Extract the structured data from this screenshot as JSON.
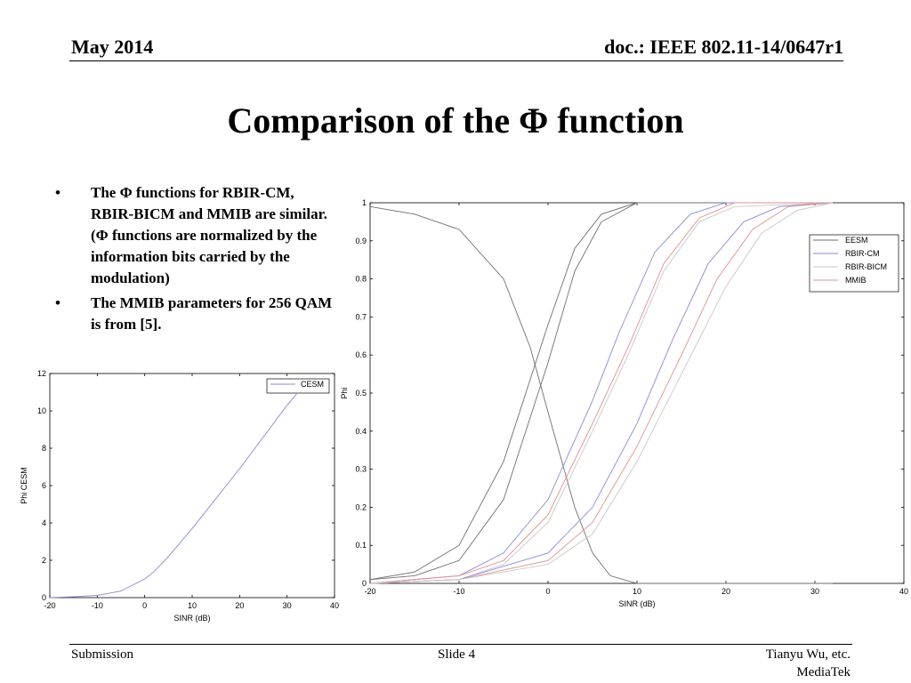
{
  "header": {
    "date": "May 2014",
    "doc_id": "doc.: IEEE 802.11-14/0647r1"
  },
  "slide": {
    "title": "Comparison of the Φ function",
    "bullets": [
      "The Φ functions for RBIR-CM, RBIR-BICM and MMIB are similar. (Φ functions are normalized by the information bits carried by the modulation)",
      "The MMIB parameters for 256 QAM is from [5]."
    ],
    "bullet_symbol": "•"
  },
  "footer": {
    "left": "Submission",
    "center": "Slide 4",
    "author": "Tianyu Wu, etc.",
    "org": "MediaTek"
  },
  "chart_data": [
    {
      "type": "line",
      "xlabel": "SINR (dB)",
      "ylabel": "Phi CESM",
      "xlim": [
        -20,
        40
      ],
      "ylim": [
        0,
        12
      ],
      "xticks": [
        -20,
        -10,
        0,
        10,
        20,
        30,
        40
      ],
      "yticks": [
        0,
        2,
        4,
        6,
        8,
        10,
        12
      ],
      "xtick_labels": [
        "-20",
        "-10",
        "0",
        "10",
        "20",
        "30",
        "40"
      ],
      "ytick_labels": [
        "0",
        "2",
        "4",
        "6",
        "8",
        "10",
        "12"
      ],
      "legend": "top-right",
      "series": [
        {
          "name": "CESM",
          "color": "#8a8ad8",
          "x": [
            -20,
            -15,
            -10,
            -5,
            0,
            2,
            5,
            10,
            15,
            20,
            25,
            30,
            32
          ],
          "y": [
            0,
            0.05,
            0.12,
            0.35,
            1.0,
            1.4,
            2.2,
            3.7,
            5.3,
            6.9,
            8.6,
            10.3,
            10.9
          ]
        }
      ]
    },
    {
      "type": "line",
      "xlabel": "SINR (dB)",
      "ylabel": "Phi",
      "xlim": [
        -20,
        40
      ],
      "ylim": [
        0,
        1
      ],
      "xticks": [
        -20,
        -10,
        0,
        10,
        20,
        30,
        40
      ],
      "yticks": [
        0,
        0.1,
        0.2,
        0.3,
        0.4,
        0.5,
        0.6,
        0.7,
        0.8,
        0.9,
        1
      ],
      "xtick_labels": [
        "-20",
        "-10",
        "0",
        "10",
        "20",
        "30",
        "40"
      ],
      "ytick_labels": [
        "0",
        "0.1",
        "0.2",
        "0.3",
        "0.4",
        "0.5",
        "0.6",
        "0.7",
        "0.8",
        "0.9",
        "1"
      ],
      "legend": "top-right",
      "legend_entries": [
        {
          "name": "EESM",
          "color": "#6e6e6e"
        },
        {
          "name": "RBIR-CM",
          "color": "#8a8ad8"
        },
        {
          "name": "RBIR-BICM",
          "color": "#c8c8c8"
        },
        {
          "name": "MMIB",
          "color": "#e29090"
        }
      ],
      "series": [
        {
          "name": "EESM",
          "color": "#6e6e6e",
          "x": [
            -20,
            -15,
            -10,
            -5,
            -2,
            0,
            3,
            5,
            7,
            10,
            32
          ],
          "y": [
            0.99,
            0.97,
            0.93,
            0.8,
            0.62,
            0.45,
            0.2,
            0.08,
            0.02,
            0.0,
            0.0
          ]
        },
        {
          "name": "EESM",
          "color": "#6e6e6e",
          "x": [
            -20,
            -15,
            -10,
            -5,
            0,
            3,
            6,
            10,
            32
          ],
          "y": [
            0.01,
            0.03,
            0.1,
            0.32,
            0.68,
            0.88,
            0.97,
            1.0,
            1.0
          ]
        },
        {
          "name": "EESM",
          "color": "#6e6e6e",
          "x": [
            -20,
            -15,
            -10,
            -5,
            0,
            3,
            6,
            10,
            32
          ],
          "y": [
            0.01,
            0.02,
            0.06,
            0.22,
            0.58,
            0.82,
            0.95,
            1.0,
            1.0
          ]
        },
        {
          "name": "RBIR-CM",
          "color": "#8a8ad8",
          "x": [
            -20,
            -10,
            -5,
            0,
            5,
            8,
            12,
            16,
            20,
            32
          ],
          "y": [
            0.0,
            0.02,
            0.08,
            0.22,
            0.48,
            0.66,
            0.87,
            0.97,
            1.0,
            1.0
          ]
        },
        {
          "name": "MMIB",
          "color": "#e29090",
          "x": [
            -20,
            -10,
            -5,
            0,
            5,
            9,
            13,
            17,
            21,
            32
          ],
          "y": [
            0.0,
            0.02,
            0.06,
            0.18,
            0.42,
            0.62,
            0.84,
            0.96,
            1.0,
            1.0
          ]
        },
        {
          "name": "RBIR-BICM",
          "color": "#c8c8c8",
          "x": [
            -20,
            -10,
            -5,
            0,
            5,
            9,
            13,
            17,
            21,
            32
          ],
          "y": [
            0.0,
            0.01,
            0.05,
            0.16,
            0.4,
            0.6,
            0.82,
            0.95,
            0.99,
            1.0
          ]
        },
        {
          "name": "RBIR-CM",
          "color": "#8a8ad8",
          "x": [
            -20,
            -10,
            0,
            5,
            10,
            14,
            18,
            22,
            26,
            32
          ],
          "y": [
            0.0,
            0.01,
            0.08,
            0.2,
            0.42,
            0.64,
            0.84,
            0.95,
            0.99,
            1.0
          ]
        },
        {
          "name": "MMIB",
          "color": "#e29090",
          "x": [
            -20,
            -10,
            0,
            5,
            10,
            15,
            19,
            23,
            27,
            32
          ],
          "y": [
            0.0,
            0.01,
            0.06,
            0.16,
            0.36,
            0.6,
            0.8,
            0.93,
            0.99,
            1.0
          ]
        },
        {
          "name": "RBIR-BICM",
          "color": "#c8c8c8",
          "x": [
            -20,
            -10,
            0,
            5,
            10,
            15,
            20,
            24,
            28,
            32
          ],
          "y": [
            0.0,
            0.01,
            0.05,
            0.13,
            0.32,
            0.55,
            0.78,
            0.92,
            0.98,
            1.0
          ]
        }
      ]
    }
  ]
}
